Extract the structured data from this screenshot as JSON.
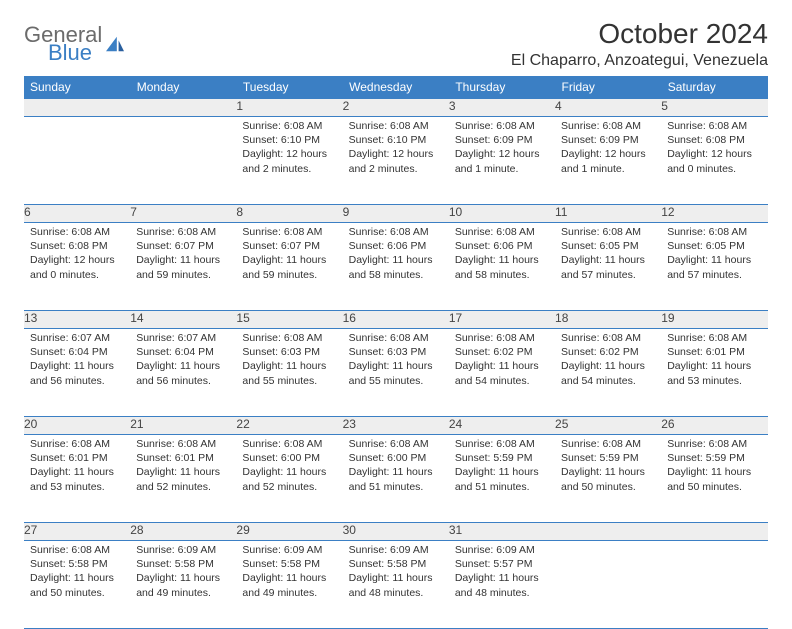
{
  "brand": {
    "part1": "General",
    "part2": "Blue"
  },
  "title": "October 2024",
  "location": "El Chaparro, Anzoategui, Venezuela",
  "colors": {
    "header_bg": "#3b7fc4",
    "header_fg": "#ffffff",
    "daynum_bg": "#eeeeee",
    "rule": "#3b7fc4"
  },
  "weekdays": [
    "Sunday",
    "Monday",
    "Tuesday",
    "Wednesday",
    "Thursday",
    "Friday",
    "Saturday"
  ],
  "weeks": [
    [
      null,
      null,
      {
        "n": "1",
        "sr": "Sunrise: 6:08 AM",
        "ss": "Sunset: 6:10 PM",
        "dl": "Daylight: 12 hours and 2 minutes."
      },
      {
        "n": "2",
        "sr": "Sunrise: 6:08 AM",
        "ss": "Sunset: 6:10 PM",
        "dl": "Daylight: 12 hours and 2 minutes."
      },
      {
        "n": "3",
        "sr": "Sunrise: 6:08 AM",
        "ss": "Sunset: 6:09 PM",
        "dl": "Daylight: 12 hours and 1 minute."
      },
      {
        "n": "4",
        "sr": "Sunrise: 6:08 AM",
        "ss": "Sunset: 6:09 PM",
        "dl": "Daylight: 12 hours and 1 minute."
      },
      {
        "n": "5",
        "sr": "Sunrise: 6:08 AM",
        "ss": "Sunset: 6:08 PM",
        "dl": "Daylight: 12 hours and 0 minutes."
      }
    ],
    [
      {
        "n": "6",
        "sr": "Sunrise: 6:08 AM",
        "ss": "Sunset: 6:08 PM",
        "dl": "Daylight: 12 hours and 0 minutes."
      },
      {
        "n": "7",
        "sr": "Sunrise: 6:08 AM",
        "ss": "Sunset: 6:07 PM",
        "dl": "Daylight: 11 hours and 59 minutes."
      },
      {
        "n": "8",
        "sr": "Sunrise: 6:08 AM",
        "ss": "Sunset: 6:07 PM",
        "dl": "Daylight: 11 hours and 59 minutes."
      },
      {
        "n": "9",
        "sr": "Sunrise: 6:08 AM",
        "ss": "Sunset: 6:06 PM",
        "dl": "Daylight: 11 hours and 58 minutes."
      },
      {
        "n": "10",
        "sr": "Sunrise: 6:08 AM",
        "ss": "Sunset: 6:06 PM",
        "dl": "Daylight: 11 hours and 58 minutes."
      },
      {
        "n": "11",
        "sr": "Sunrise: 6:08 AM",
        "ss": "Sunset: 6:05 PM",
        "dl": "Daylight: 11 hours and 57 minutes."
      },
      {
        "n": "12",
        "sr": "Sunrise: 6:08 AM",
        "ss": "Sunset: 6:05 PM",
        "dl": "Daylight: 11 hours and 57 minutes."
      }
    ],
    [
      {
        "n": "13",
        "sr": "Sunrise: 6:07 AM",
        "ss": "Sunset: 6:04 PM",
        "dl": "Daylight: 11 hours and 56 minutes."
      },
      {
        "n": "14",
        "sr": "Sunrise: 6:07 AM",
        "ss": "Sunset: 6:04 PM",
        "dl": "Daylight: 11 hours and 56 minutes."
      },
      {
        "n": "15",
        "sr": "Sunrise: 6:08 AM",
        "ss": "Sunset: 6:03 PM",
        "dl": "Daylight: 11 hours and 55 minutes."
      },
      {
        "n": "16",
        "sr": "Sunrise: 6:08 AM",
        "ss": "Sunset: 6:03 PM",
        "dl": "Daylight: 11 hours and 55 minutes."
      },
      {
        "n": "17",
        "sr": "Sunrise: 6:08 AM",
        "ss": "Sunset: 6:02 PM",
        "dl": "Daylight: 11 hours and 54 minutes."
      },
      {
        "n": "18",
        "sr": "Sunrise: 6:08 AM",
        "ss": "Sunset: 6:02 PM",
        "dl": "Daylight: 11 hours and 54 minutes."
      },
      {
        "n": "19",
        "sr": "Sunrise: 6:08 AM",
        "ss": "Sunset: 6:01 PM",
        "dl": "Daylight: 11 hours and 53 minutes."
      }
    ],
    [
      {
        "n": "20",
        "sr": "Sunrise: 6:08 AM",
        "ss": "Sunset: 6:01 PM",
        "dl": "Daylight: 11 hours and 53 minutes."
      },
      {
        "n": "21",
        "sr": "Sunrise: 6:08 AM",
        "ss": "Sunset: 6:01 PM",
        "dl": "Daylight: 11 hours and 52 minutes."
      },
      {
        "n": "22",
        "sr": "Sunrise: 6:08 AM",
        "ss": "Sunset: 6:00 PM",
        "dl": "Daylight: 11 hours and 52 minutes."
      },
      {
        "n": "23",
        "sr": "Sunrise: 6:08 AM",
        "ss": "Sunset: 6:00 PM",
        "dl": "Daylight: 11 hours and 51 minutes."
      },
      {
        "n": "24",
        "sr": "Sunrise: 6:08 AM",
        "ss": "Sunset: 5:59 PM",
        "dl": "Daylight: 11 hours and 51 minutes."
      },
      {
        "n": "25",
        "sr": "Sunrise: 6:08 AM",
        "ss": "Sunset: 5:59 PM",
        "dl": "Daylight: 11 hours and 50 minutes."
      },
      {
        "n": "26",
        "sr": "Sunrise: 6:08 AM",
        "ss": "Sunset: 5:59 PM",
        "dl": "Daylight: 11 hours and 50 minutes."
      }
    ],
    [
      {
        "n": "27",
        "sr": "Sunrise: 6:08 AM",
        "ss": "Sunset: 5:58 PM",
        "dl": "Daylight: 11 hours and 50 minutes."
      },
      {
        "n": "28",
        "sr": "Sunrise: 6:09 AM",
        "ss": "Sunset: 5:58 PM",
        "dl": "Daylight: 11 hours and 49 minutes."
      },
      {
        "n": "29",
        "sr": "Sunrise: 6:09 AM",
        "ss": "Sunset: 5:58 PM",
        "dl": "Daylight: 11 hours and 49 minutes."
      },
      {
        "n": "30",
        "sr": "Sunrise: 6:09 AM",
        "ss": "Sunset: 5:58 PM",
        "dl": "Daylight: 11 hours and 48 minutes."
      },
      {
        "n": "31",
        "sr": "Sunrise: 6:09 AM",
        "ss": "Sunset: 5:57 PM",
        "dl": "Daylight: 11 hours and 48 minutes."
      },
      null,
      null
    ]
  ]
}
